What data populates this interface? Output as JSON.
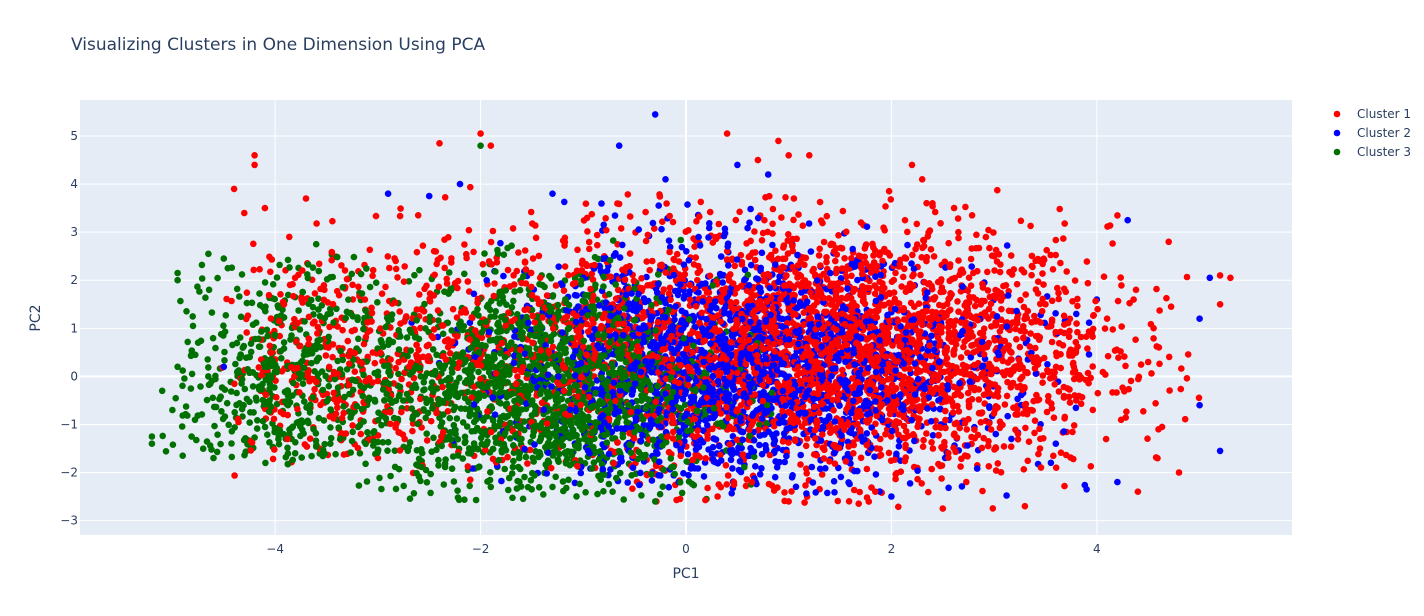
{
  "chart_data": {
    "type": "scatter",
    "title": "Visualizing Clusters in One Dimension Using PCA",
    "xlabel": "PC1",
    "ylabel": "PC2",
    "xlim": [
      -5.9,
      5.9
    ],
    "ylim": [
      -3.3,
      5.75
    ],
    "xticks": [
      -4,
      -2,
      0,
      2,
      4
    ],
    "xtick_labels": [
      "−4",
      "−2",
      "0",
      "2",
      "4"
    ],
    "yticks": [
      -3,
      -2,
      -1,
      0,
      1,
      2,
      3,
      4,
      5
    ],
    "ytick_labels": [
      "−3",
      "−2",
      "−1",
      "0",
      "1",
      "2",
      "3",
      "4",
      "5"
    ],
    "grid": true,
    "legend_position": "top-right",
    "plot_bgcolor": "#e5ecf6",
    "series": [
      {
        "name": "Cluster 1",
        "color": "#ff0000",
        "points": [
          [
            -4.2,
            4.6
          ],
          [
            -4.2,
            4.4
          ],
          [
            -4.4,
            3.9
          ],
          [
            -4.3,
            3.4
          ],
          [
            -4.1,
            3.5
          ],
          [
            -3.7,
            3.7
          ],
          [
            -2.0,
            5.05
          ],
          [
            -1.9,
            4.8
          ],
          [
            -2.4,
            4.85
          ],
          [
            0.4,
            5.05
          ],
          [
            0.9,
            4.9
          ],
          [
            1.0,
            4.6
          ],
          [
            1.2,
            4.6
          ],
          [
            0.7,
            4.5
          ],
          [
            2.2,
            4.4
          ],
          [
            2.3,
            4.1
          ],
          [
            4.2,
            3.35
          ],
          [
            4.7,
            2.8
          ],
          [
            5.2,
            2.1
          ],
          [
            5.3,
            2.05
          ],
          [
            5.2,
            1.5
          ],
          [
            4.8,
            -2.0
          ],
          [
            4.4,
            -2.4
          ],
          [
            2.5,
            -2.75
          ],
          [
            3.3,
            -2.7
          ],
          [
            1.0,
            -2.6
          ],
          [
            -2.1,
            -2.15
          ],
          [
            -3.0,
            -1.7
          ],
          [
            3.0,
            2.5
          ],
          [
            3.5,
            1.5
          ],
          [
            2.8,
            0.5
          ],
          [
            3.8,
            -0.5
          ],
          [
            4.1,
            1.2
          ],
          [
            4.5,
            0.3
          ],
          [
            4.6,
            -1.1
          ]
        ],
        "clouds": [
          {
            "n": 2800,
            "cx": 1.6,
            "cy": 0.5,
            "sx": 1.25,
            "sy": 1.3,
            "xmin": -1.8,
            "xmax": 5.0,
            "ymin": -2.75,
            "ymax": 3.9
          },
          {
            "n": 700,
            "cx": -1.5,
            "cy": 0.6,
            "sx": 1.2,
            "sy": 1.35,
            "xmin": -4.6,
            "xmax": 1.0,
            "ymin": -2.2,
            "ymax": 4.0
          },
          {
            "n": 250,
            "cx": -3.4,
            "cy": 0.3,
            "sx": 0.55,
            "sy": 1.1,
            "xmin": -4.4,
            "xmax": -2.3,
            "ymin": -1.7,
            "ymax": 3.2
          }
        ]
      },
      {
        "name": "Cluster 2",
        "color": "#0000ff",
        "points": [
          [
            -0.3,
            5.45
          ],
          [
            -0.65,
            4.8
          ],
          [
            0.5,
            4.4
          ],
          [
            0.8,
            4.2
          ],
          [
            -0.2,
            4.1
          ],
          [
            -1.3,
            3.8
          ],
          [
            -2.2,
            4.0
          ],
          [
            -2.5,
            3.75
          ],
          [
            -2.9,
            3.8
          ],
          [
            -4.5,
            0.2
          ],
          [
            5.1,
            2.05
          ],
          [
            5.0,
            -0.6
          ],
          [
            5.0,
            1.2
          ],
          [
            5.2,
            -1.55
          ],
          [
            4.2,
            -2.2
          ],
          [
            3.9,
            -2.35
          ],
          [
            4.3,
            3.25
          ],
          [
            3.8,
            1.3
          ],
          [
            4.0,
            1.6
          ],
          [
            3.6,
            -1.4
          ],
          [
            2.0,
            -2.5
          ]
        ],
        "clouds": [
          {
            "n": 1700,
            "cx": 0.3,
            "cy": 0.2,
            "sx": 1.0,
            "sy": 1.2,
            "xmin": -2.7,
            "xmax": 3.3,
            "ymin": -2.5,
            "ymax": 3.8
          },
          {
            "n": 400,
            "cx": 1.8,
            "cy": 0.0,
            "sx": 0.9,
            "sy": 1.0,
            "xmin": -0.5,
            "xmax": 4.0,
            "ymin": -2.5,
            "ymax": 3.3
          }
        ]
      },
      {
        "name": "Cluster 3",
        "color": "#007000",
        "points": [
          [
            -5.2,
            -1.25
          ],
          [
            -5.2,
            -1.4
          ],
          [
            -5.1,
            -0.3
          ],
          [
            -4.95,
            2.15
          ],
          [
            -4.95,
            2.0
          ],
          [
            -4.8,
            1.05
          ],
          [
            -4.75,
            0.7
          ],
          [
            -4.65,
            2.55
          ],
          [
            -4.5,
            2.45
          ],
          [
            -5.0,
            -0.7
          ],
          [
            -4.9,
            -1.65
          ],
          [
            -4.6,
            -1.7
          ],
          [
            -2.0,
            4.8
          ],
          [
            -3.6,
            2.75
          ],
          [
            -0.3,
            -2.6
          ],
          [
            0.2,
            -2.55
          ],
          [
            -1.9,
            -2.3
          ],
          [
            -1.3,
            -2.3
          ]
        ],
        "clouds": [
          {
            "n": 500,
            "cx": -3.9,
            "cy": 0.0,
            "sx": 0.55,
            "sy": 1.2,
            "xmin": -5.1,
            "xmax": -2.8,
            "ymin": -1.85,
            "ymax": 2.7
          },
          {
            "n": 1700,
            "cx": -1.4,
            "cy": -0.3,
            "sx": 0.85,
            "sy": 1.15,
            "xmin": -3.4,
            "xmax": 0.9,
            "ymin": -2.6,
            "ymax": 3.2
          }
        ]
      }
    ]
  }
}
